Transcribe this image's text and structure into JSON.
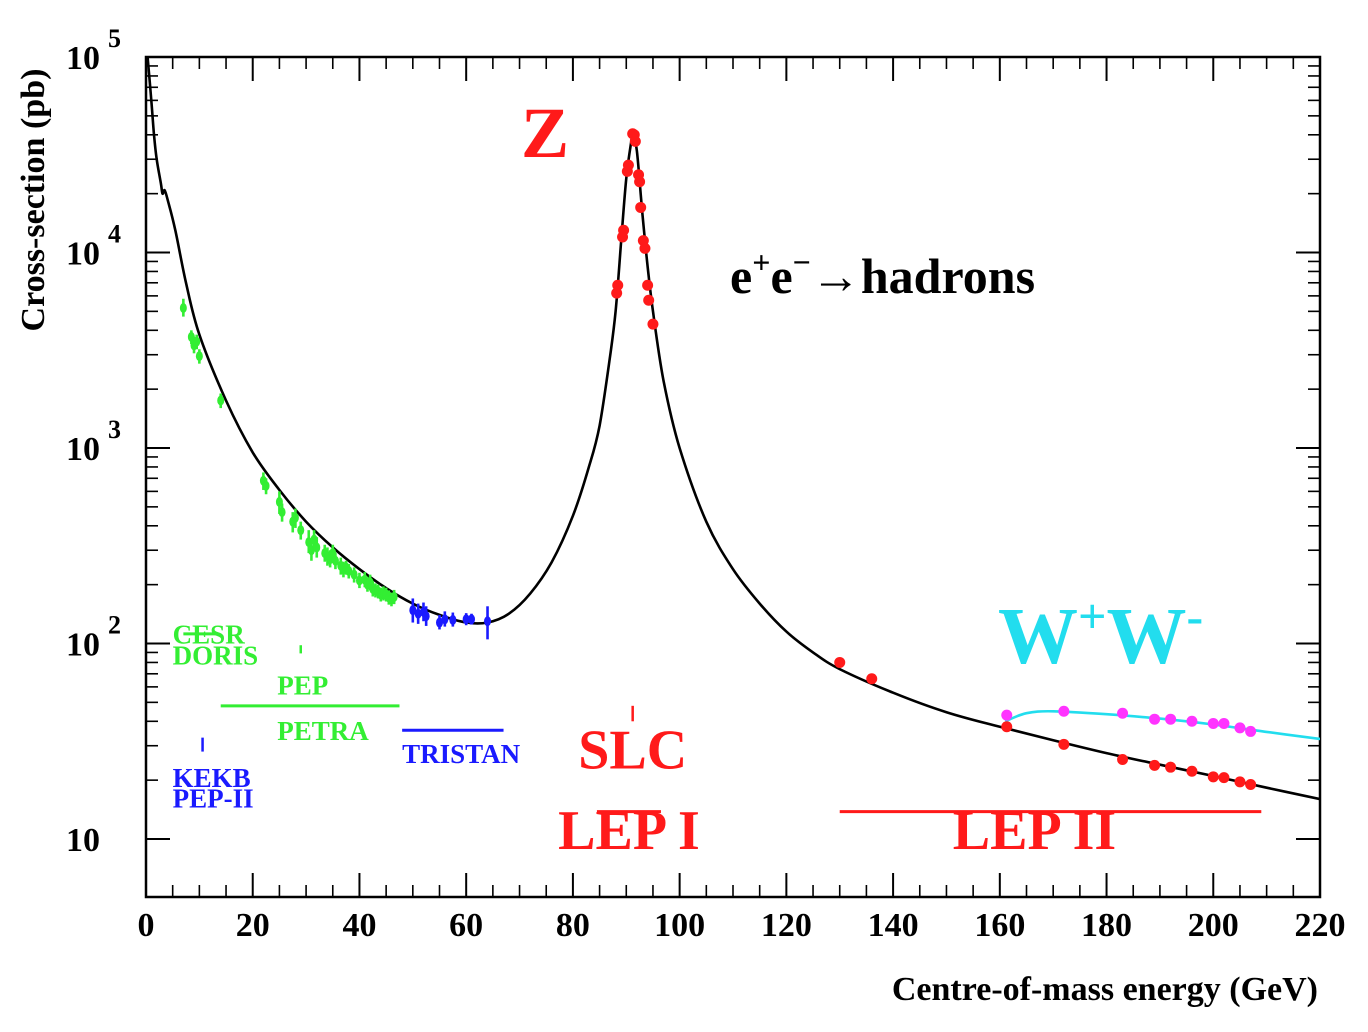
{
  "chart_data": {
    "type": "scatter",
    "xlabel": "Centre-of-mass energy (GeV)",
    "ylabel": "Cross-section (pb)",
    "xlim": [
      0,
      220
    ],
    "ylim": [
      10,
      100000
    ],
    "yscale": "log",
    "x_ticks": [
      0,
      20,
      40,
      60,
      80,
      100,
      120,
      140,
      160,
      180,
      200,
      220
    ],
    "y_ticks": [
      {
        "value": 10,
        "base": "10",
        "exp": ""
      },
      {
        "value": 100,
        "base": "10",
        "exp": "2"
      },
      {
        "value": 1000,
        "base": "10",
        "exp": "3"
      },
      {
        "value": 10000,
        "base": "10",
        "exp": "4"
      },
      {
        "value": 100000,
        "base": "10",
        "exp": "5"
      }
    ],
    "process_label": {
      "e1": "e",
      "sup1": "+",
      "e2": "e",
      "sup2": "−",
      "arrow": "→",
      "rest": "hadrons"
    },
    "peak_label": "Z",
    "ww_label": {
      "w1": "W",
      "sup1": "+",
      "w2": "W",
      "sup2": "-"
    },
    "colors": {
      "low_energy": "#33ee33",
      "tristan": "#1a1aff",
      "lep": "#ff1a1a",
      "ww": "#22ddee",
      "ww_points": "#ff33ff",
      "curve": "#000000"
    },
    "theory_curve": [
      [
        0.3,
        100000
      ],
      [
        1,
        60000
      ],
      [
        1.5,
        40000
      ],
      [
        2,
        30000
      ],
      [
        2.8,
        22500
      ],
      [
        3.1,
        20000
      ],
      [
        3.5,
        20800
      ],
      [
        4.2,
        18000
      ],
      [
        5.5,
        13000
      ],
      [
        7.5,
        7000
      ],
      [
        10,
        3800
      ],
      [
        15,
        1750
      ],
      [
        20,
        950
      ],
      [
        25,
        610
      ],
      [
        30,
        420
      ],
      [
        35,
        310
      ],
      [
        40,
        240
      ],
      [
        45,
        192
      ],
      [
        50,
        160
      ],
      [
        55,
        140
      ],
      [
        60,
        128
      ],
      [
        64,
        128
      ],
      [
        68,
        142
      ],
      [
        72,
        180
      ],
      [
        76,
        260
      ],
      [
        80,
        450
      ],
      [
        83,
        800
      ],
      [
        85,
        1300
      ],
      [
        87,
        3000
      ],
      [
        88,
        5000
      ],
      [
        89,
        11000
      ],
      [
        90,
        24000
      ],
      [
        91,
        38000
      ],
      [
        91.2,
        41000
      ],
      [
        92,
        33000
      ],
      [
        93,
        16000
      ],
      [
        94,
        8500
      ],
      [
        95,
        5000
      ],
      [
        97,
        2200
      ],
      [
        100,
        1000
      ],
      [
        105,
        420
      ],
      [
        110,
        240
      ],
      [
        115,
        160
      ],
      [
        120,
        115
      ],
      [
        125,
        90
      ],
      [
        130,
        74
      ],
      [
        140,
        56
      ],
      [
        150,
        44.5
      ],
      [
        160,
        37.5
      ],
      [
        170,
        32
      ],
      [
        180,
        27.5
      ],
      [
        190,
        24
      ],
      [
        200,
        21
      ],
      [
        210,
        18.3
      ],
      [
        220,
        16
      ]
    ],
    "ww_curve": [
      [
        161,
        40
      ],
      [
        165,
        44
      ],
      [
        170,
        45
      ],
      [
        180,
        43.5
      ],
      [
        190,
        41.3
      ],
      [
        200,
        38.5
      ],
      [
        210,
        35.3
      ],
      [
        220,
        32.5
      ]
    ],
    "series": [
      {
        "color": "#33ee33",
        "points": [
          [
            7,
            5200,
            5800,
            4700
          ],
          [
            8.5,
            3700,
            4000,
            3400
          ],
          [
            9,
            3350,
            3700,
            3050
          ],
          [
            9.5,
            3500,
            3800,
            3200
          ],
          [
            10,
            2950,
            3200,
            2700
          ],
          [
            14,
            1750,
            1900,
            1600
          ],
          [
            22,
            680,
            750,
            610
          ],
          [
            22.5,
            640,
            700,
            580
          ],
          [
            25,
            530,
            600,
            460
          ],
          [
            25.5,
            470,
            520,
            420
          ],
          [
            27.5,
            420,
            470,
            370
          ],
          [
            28,
            440,
            490,
            390
          ],
          [
            29,
            380,
            420,
            340
          ],
          [
            30.5,
            330,
            380,
            290
          ],
          [
            31,
            300,
            340,
            265
          ],
          [
            31.5,
            340,
            380,
            300
          ],
          [
            32,
            310,
            350,
            275
          ],
          [
            33.5,
            290,
            320,
            262
          ],
          [
            34,
            280,
            310,
            250
          ],
          [
            34.5,
            270,
            300,
            245
          ],
          [
            35,
            290,
            320,
            262
          ],
          [
            35.5,
            265,
            290,
            240
          ],
          [
            36.5,
            250,
            275,
            225
          ],
          [
            37,
            240,
            262,
            218
          ],
          [
            37.5,
            245,
            265,
            225
          ],
          [
            38,
            235,
            255,
            215
          ],
          [
            39,
            225,
            245,
            205
          ],
          [
            40,
            210,
            230,
            192
          ],
          [
            41,
            212,
            232,
            194
          ],
          [
            41.5,
            200,
            218,
            184
          ],
          [
            42,
            205,
            225,
            187
          ],
          [
            42.5,
            190,
            208,
            174
          ],
          [
            43,
            187,
            203,
            172
          ],
          [
            43.5,
            185,
            200,
            170
          ],
          [
            44,
            178,
            193,
            164
          ],
          [
            44.5,
            180,
            196,
            166
          ],
          [
            45,
            178,
            193,
            164
          ],
          [
            45.5,
            172,
            187,
            158
          ],
          [
            46,
            168,
            182,
            155
          ],
          [
            46.5,
            173,
            188,
            159
          ]
        ]
      },
      {
        "color": "#1a1aff",
        "points": [
          [
            50,
            148,
            170,
            128
          ],
          [
            51,
            142,
            160,
            126
          ],
          [
            52,
            145,
            162,
            130
          ],
          [
            52.5,
            138,
            155,
            123
          ],
          [
            55,
            128,
            140,
            118
          ],
          [
            56,
            133,
            146,
            122
          ],
          [
            57.5,
            132,
            144,
            122
          ],
          [
            60,
            133,
            143,
            124
          ],
          [
            61,
            133,
            142,
            125
          ],
          [
            64,
            130,
            155,
            105
          ]
        ]
      },
      {
        "color": "#ff1a1a",
        "points": [
          [
            88.2,
            6200
          ],
          [
            88.4,
            6800
          ],
          [
            89.3,
            12000
          ],
          [
            89.5,
            13000
          ],
          [
            90.2,
            26000
          ],
          [
            90.4,
            28000
          ],
          [
            91.2,
            40500
          ],
          [
            91.5,
            40000
          ],
          [
            91.7,
            37000
          ],
          [
            92.3,
            25000
          ],
          [
            92.5,
            23000
          ],
          [
            92.7,
            17000
          ],
          [
            93.2,
            11500
          ],
          [
            93.5,
            10500
          ],
          [
            94,
            6800
          ],
          [
            94.2,
            5700
          ],
          [
            95,
            4300
          ],
          [
            130,
            80
          ],
          [
            136,
            66
          ],
          [
            161.3,
            37.5
          ],
          [
            172,
            30.5
          ],
          [
            183,
            25.5
          ],
          [
            189,
            23.8
          ],
          [
            192,
            23.3
          ],
          [
            196,
            22.2
          ],
          [
            200,
            20.8
          ],
          [
            202,
            20.6
          ],
          [
            205,
            19.6
          ],
          [
            207,
            19
          ]
        ]
      },
      {
        "color": "#ff33ff",
        "points": [
          [
            161.3,
            43
          ],
          [
            172,
            45
          ],
          [
            183,
            44
          ],
          [
            189,
            41
          ],
          [
            192,
            41
          ],
          [
            196,
            40
          ],
          [
            200,
            39
          ],
          [
            202,
            39
          ],
          [
            205,
            37
          ],
          [
            207,
            35.5
          ]
        ]
      }
    ],
    "experiments": [
      {
        "label": "CESR",
        "color": "#33ee33",
        "line": [
          7,
          13.5
        ],
        "line_y": 112,
        "text": [
          5,
          100
        ],
        "anchor": "start"
      },
      {
        "label": "DORIS",
        "color": "#33ee33",
        "text": [
          5,
          78
        ],
        "anchor": "start"
      },
      {
        "label": "PEP",
        "color": "#33ee33",
        "tick": 29,
        "tick_y": [
          89,
          98
        ],
        "text": [
          24.6,
          55
        ],
        "anchor": "start"
      },
      {
        "label": "PETRA",
        "color": "#33ee33",
        "line": [
          14,
          47.5
        ],
        "line_y": 48,
        "text": [
          24.6,
          32
        ],
        "anchor": "start"
      },
      {
        "label": "TRISTAN",
        "color": "#1a1aff",
        "line": [
          48,
          67
        ],
        "line_y": 36,
        "text": [
          48,
          24.5
        ],
        "anchor": "start"
      },
      {
        "label": "KEKB",
        "color": "#1a1aff",
        "tick": 10.6,
        "tick_y": [
          28,
          33
        ],
        "text": [
          5,
          18.5
        ],
        "anchor": "start"
      },
      {
        "label": "PEP-II",
        "color": "#1a1aff",
        "text": [
          5,
          14.5
        ],
        "anchor": "start"
      },
      {
        "label": "SLC",
        "color": "#ff1a1a",
        "tick": 91.2,
        "tick_y": [
          40,
          48
        ],
        "text": [
          91.2,
          23
        ],
        "anchor": "middle"
      },
      {
        "label": "LEP I",
        "color": "#ff1a1a",
        "line": [
          84.5,
          96.5
        ],
        "line_y": 13.8,
        "text": [
          90.5,
          8.9
        ],
        "anchor": "middle"
      },
      {
        "label": "LEP II",
        "color": "#ff1a1a",
        "line": [
          130,
          209
        ],
        "line_y": 13.8,
        "text": [
          166.5,
          8.9
        ],
        "anchor": "middle"
      }
    ]
  }
}
